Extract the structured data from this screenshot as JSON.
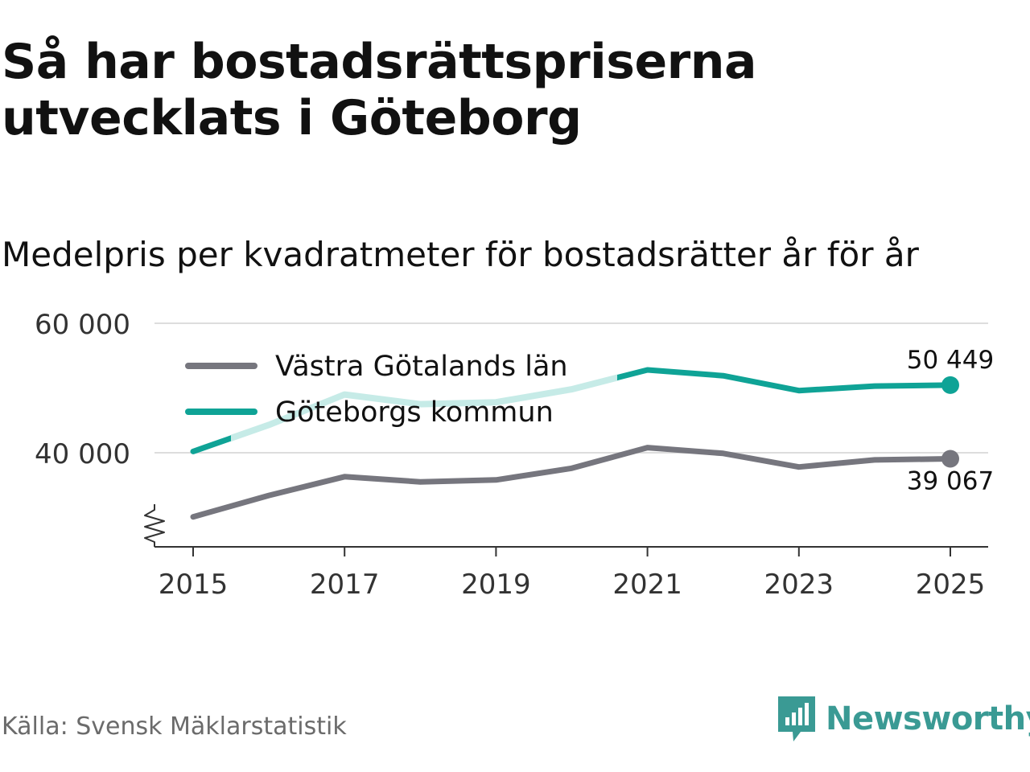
{
  "title": "Så har bostadsrättspriserna utvecklats i Göteborg",
  "subtitle": "Medelpris per kvadratmeter för bostadsrätter år för år",
  "source": "Källa: Svensk Mäklarstatistik",
  "brand": {
    "name": "Newsworthy",
    "icon": "newsworthy-logo-icon"
  },
  "colors": {
    "teal": "#0fa396",
    "teal_light": "#c6ebe7",
    "gray": "#76767e",
    "grid": "#dddddd",
    "axis": "#333333"
  },
  "chart_data": {
    "type": "line",
    "x": [
      2015,
      2016,
      2017,
      2018,
      2019,
      2020,
      2021,
      2022,
      2023,
      2024,
      2025
    ],
    "ylim": [
      26000,
      60000
    ],
    "yticks": [
      {
        "value": 40000,
        "label": "40 000"
      },
      {
        "value": 60000,
        "label": "60 000"
      }
    ],
    "xticks": [
      {
        "value": 2015,
        "label": "2015"
      },
      {
        "value": 2017,
        "label": "2017"
      },
      {
        "value": 2019,
        "label": "2019"
      },
      {
        "value": 2021,
        "label": "2021"
      },
      {
        "value": 2023,
        "label": "2023"
      },
      {
        "value": 2025,
        "label": "2025"
      }
    ],
    "axis_break": true,
    "legend": {
      "placement": "top-left"
    },
    "series": [
      {
        "name": "Västra Götalands län",
        "color": "#76767e",
        "values": [
          30100,
          33400,
          36300,
          35500,
          35800,
          37600,
          40800,
          39900,
          37800,
          38900,
          39067
        ],
        "end_label": "39 067",
        "end_label_position": "below"
      },
      {
        "name": "Göteborgs kommun",
        "color": "#0fa396",
        "highlight_color": "#c6ebe7",
        "highlight_range": [
          2015.5,
          2020.6
        ],
        "values": [
          40200,
          44300,
          49000,
          47500,
          47800,
          49800,
          52800,
          51900,
          49600,
          50300,
          50449
        ],
        "end_label": "50 449",
        "end_label_position": "above"
      }
    ]
  }
}
